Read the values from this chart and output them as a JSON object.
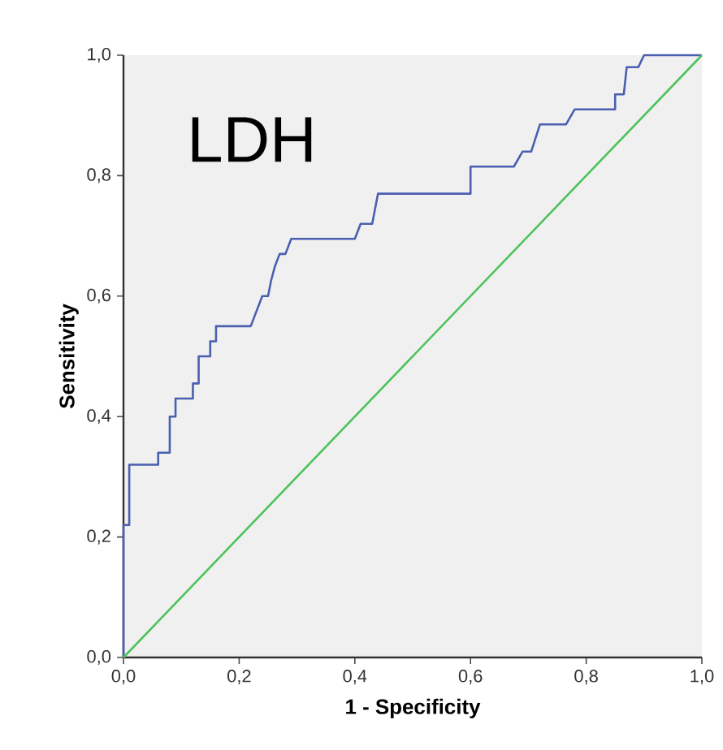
{
  "chart_data": {
    "type": "line",
    "xlabel": "1 - Specificity",
    "ylabel": "Sensitivity",
    "annotations": [
      "LDH"
    ],
    "xlim": [
      0,
      1
    ],
    "ylim": [
      0,
      1
    ],
    "xticks": [
      {
        "value": 0,
        "label": "0,0"
      },
      {
        "value": 0.2,
        "label": "0,2"
      },
      {
        "value": 0.4,
        "label": "0,4"
      },
      {
        "value": 0.6,
        "label": "0,6"
      },
      {
        "value": 0.8,
        "label": "0,8"
      },
      {
        "value": 1,
        "label": "1,0"
      }
    ],
    "yticks": [
      {
        "value": 0,
        "label": "0,0"
      },
      {
        "value": 0.2,
        "label": "0,2"
      },
      {
        "value": 0.4,
        "label": "0,4"
      },
      {
        "value": 0.6,
        "label": "0,6"
      },
      {
        "value": 0.8,
        "label": "0,8"
      },
      {
        "value": 1,
        "label": "1,0"
      }
    ],
    "grid": false,
    "marker": "none",
    "line_style": "solid",
    "series": [
      {
        "color": "#4a5fb0",
        "x": [
          0,
          0,
          0.01,
          0.01,
          0.01,
          0.01,
          0.01,
          0.01,
          0.06,
          0.06,
          0.08,
          0.08,
          0.08,
          0.08,
          0.09,
          0.09,
          0.12,
          0.12,
          0.13,
          0.13,
          0.13,
          0.13,
          0.15,
          0.15,
          0.16,
          0.16,
          0.22,
          0.24,
          0.25,
          0.255,
          0.262,
          0.27,
          0.28,
          0.29,
          0.4,
          0.41,
          0.43,
          0.44,
          0.6,
          0.6,
          0.675,
          0.69,
          0.705,
          0.72,
          0.765,
          0.78,
          0.85,
          0.85,
          0.865,
          0.87,
          0.89,
          0.9,
          1
        ],
        "values": [
          0,
          0.22,
          0.22,
          0.25,
          0.25,
          0.29,
          0.29,
          0.32,
          0.32,
          0.34,
          0.34,
          0.36,
          0.36,
          0.4,
          0.4,
          0.43,
          0.43,
          0.455,
          0.455,
          0.48,
          0.48,
          0.5,
          0.5,
          0.525,
          0.525,
          0.55,
          0.55,
          0.6,
          0.6,
          0.625,
          0.65,
          0.67,
          0.67,
          0.695,
          0.695,
          0.72,
          0.72,
          0.77,
          0.77,
          0.815,
          0.815,
          0.84,
          0.84,
          0.885,
          0.885,
          0.91,
          0.91,
          0.935,
          0.935,
          0.98,
          0.98,
          1,
          1
        ]
      },
      {
        "color": "#4cc35a",
        "x": [
          0,
          1
        ],
        "values": [
          0,
          1
        ]
      }
    ]
  }
}
